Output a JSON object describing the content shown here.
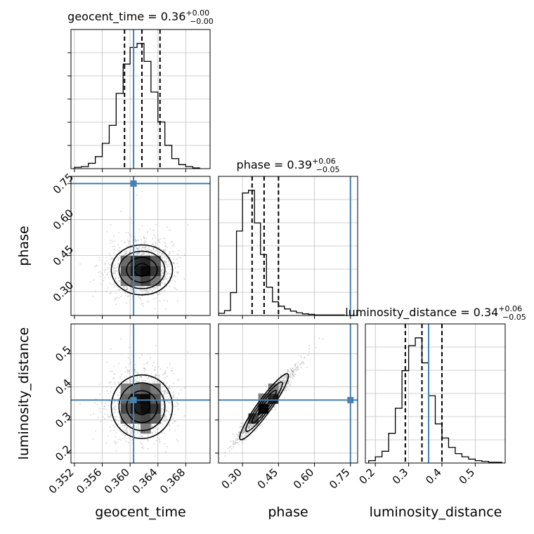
{
  "chart_data": {
    "type": "corner",
    "parameters": [
      "geocent_time",
      "phase",
      "luminosity_distance"
    ],
    "truths": {
      "geocent_time": 0.3605,
      "phase": 0.75,
      "luminosity_distance": 0.36
    },
    "ranges": {
      "geocent_time": [
        0.3515,
        0.3715
      ],
      "phase": [
        0.2,
        0.78
      ],
      "luminosity_distance": [
        0.17,
        0.59
      ]
    },
    "ticks": {
      "geocent_time": {
        "values": [
          0.352,
          0.356,
          0.36,
          0.364,
          0.368
        ],
        "labels": [
          "0.352",
          "0.356",
          "0.360",
          "0.364",
          "0.368"
        ]
      },
      "phase": {
        "values": [
          0.3,
          0.45,
          0.6,
          0.75
        ],
        "labels": [
          "0.30",
          "0.45",
          "0.60",
          "0.75"
        ]
      },
      "luminosity_distance": {
        "values": [
          0.2,
          0.3,
          0.4,
          0.5
        ],
        "labels": [
          "0.2",
          "0.3",
          "0.4",
          "0.5"
        ]
      }
    },
    "titles": [
      {
        "param": "geocent_time",
        "text": "geocent_time = 0.36",
        "sup": "+0.00",
        "sub": "−0.00"
      },
      {
        "param": "phase",
        "text": "phase = 0.39",
        "sup": "+0.06",
        "sub": "−0.05"
      },
      {
        "param": "luminosity_distance",
        "text": "luminosity_distance = 0.34",
        "sup": "+0.06",
        "sub": "−0.05"
      }
    ],
    "quantiles": {
      "geocent_time": [
        0.3592,
        0.3617,
        0.3643
      ],
      "phase": [
        0.34,
        0.39,
        0.45
      ],
      "luminosity_distance": [
        0.29,
        0.34,
        0.4
      ]
    },
    "marginals": {
      "geocent_time": {
        "edges_start": 0.352,
        "bin_width": 0.001,
        "counts": [
          2,
          3,
          8,
          18,
          38,
          65,
          113,
          157,
          182,
          188,
          161,
          115,
          70,
          35,
          15,
          6,
          3,
          1
        ]
      },
      "phase": {
        "edges_start": 0.2,
        "bin_width": 0.025,
        "counts": [
          4,
          9,
          42,
          155,
          225,
          230,
          170,
          112,
          52,
          25,
          17,
          12,
          8,
          5,
          3,
          2,
          1,
          1,
          1,
          1,
          1
        ]
      },
      "luminosity_distance": {
        "edges_start": 0.18,
        "bin_width": 0.02,
        "counts": [
          3,
          8,
          15,
          38,
          70,
          118,
          150,
          160,
          128,
          86,
          50,
          32,
          20,
          12,
          8,
          5,
          3,
          2,
          1,
          1
        ]
      }
    },
    "contour_levels": [
      "0.5-sigma",
      "1-sigma",
      "1.5-sigma",
      "2-sigma"
    ],
    "sample_count": 3000,
    "colors": {
      "truth": "#4682b4",
      "hist": "#000000",
      "grid": "#c0c0c0",
      "samples": "#9a9a9a"
    },
    "grid": true
  }
}
